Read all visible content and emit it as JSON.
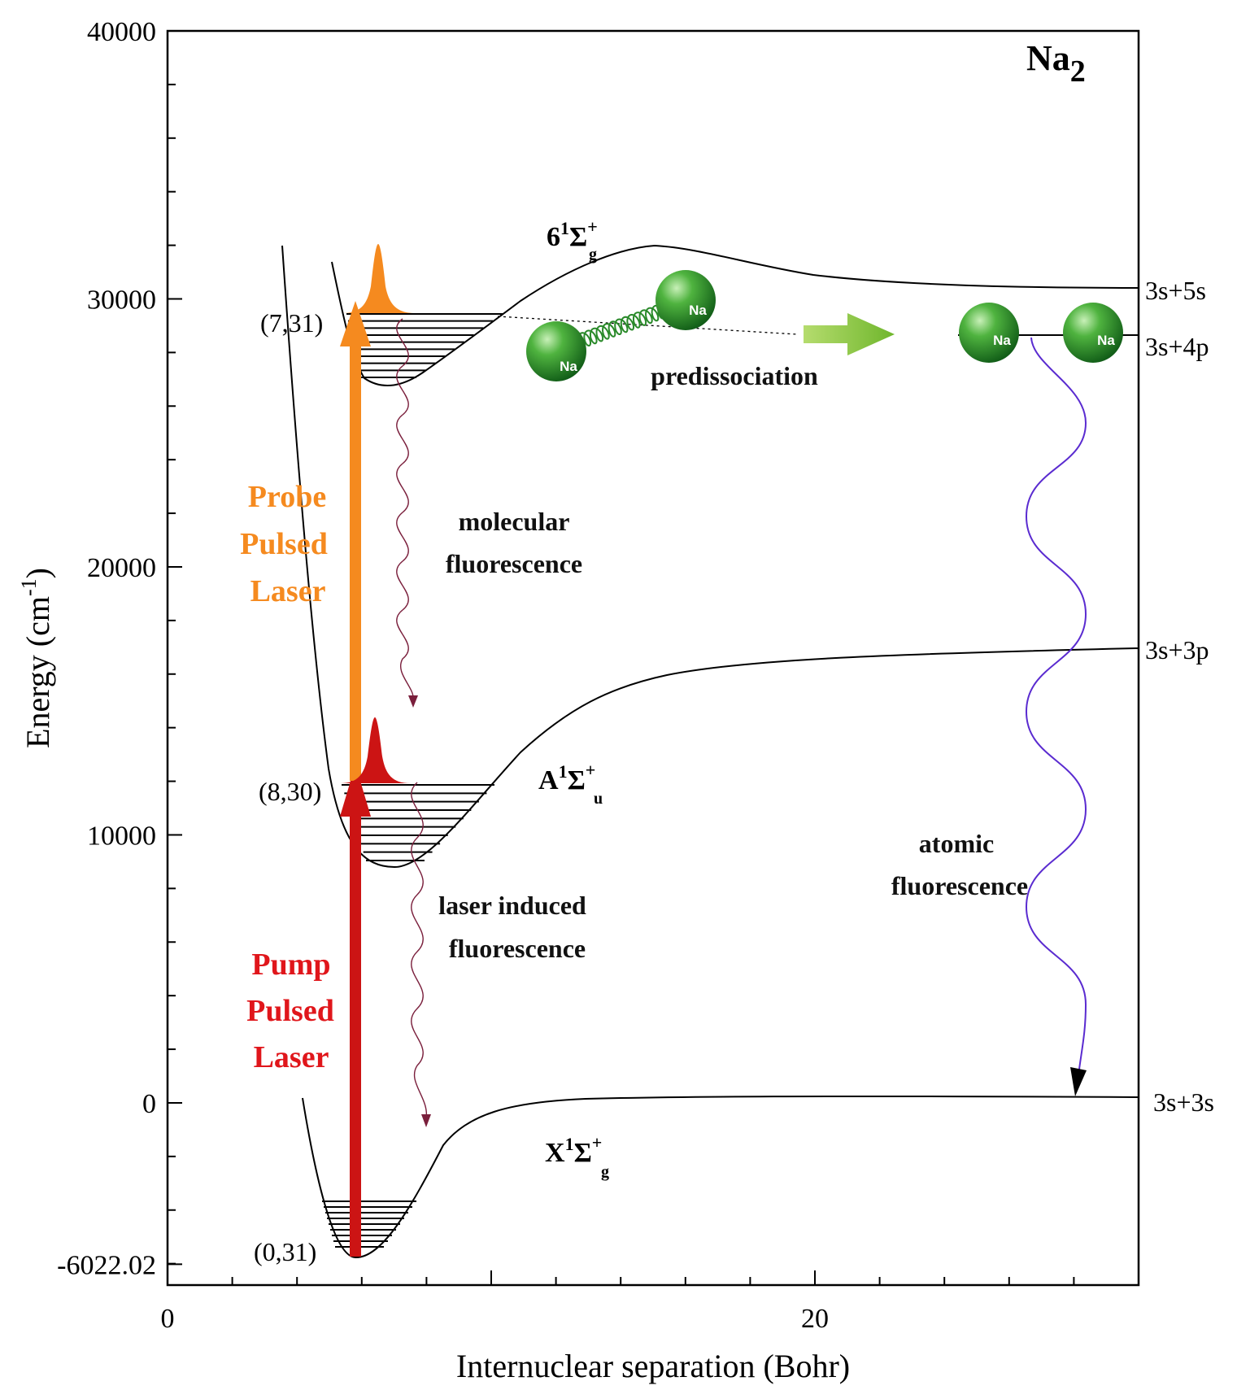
{
  "diagram": {
    "title_species": "Na",
    "title_subscript": "2",
    "axes": {
      "x_label": "Internuclear separation (Bohr)",
      "y_label_main": "Energy (cm",
      "y_label_sup": "-1",
      "y_label_close": ")",
      "x_ticks": [
        {
          "value": 0,
          "label": "0"
        },
        {
          "value": 20,
          "label": "20"
        }
      ],
      "y_ticks": [
        {
          "value": 40000,
          "label": "40000"
        },
        {
          "value": 30000,
          "label": "30000"
        },
        {
          "value": 20000,
          "label": "20000"
        },
        {
          "value": 10000,
          "label": "10000"
        },
        {
          "value": 0,
          "label": "0"
        },
        {
          "value": -6022.02,
          "label": "-6022.02"
        }
      ],
      "x_range": [
        0,
        30
      ],
      "y_range": [
        -6800,
        40000
      ]
    },
    "states": {
      "six": {
        "main": "6",
        "sup1": "1",
        "sigma": "Σ",
        "sup2": "+",
        "sub": "g"
      },
      "a": {
        "main": "A",
        "sup1": "1",
        "sigma": "Σ",
        "sup2": "+",
        "sub": "u"
      },
      "x": {
        "main": "X",
        "sup1": "1",
        "sigma": "Σ",
        "sup2": "+",
        "sub": "g"
      }
    },
    "asymptotes": {
      "s5s": "3s+5s",
      "s4p": "3s+4p",
      "s3p": "3s+3p",
      "s3s": "3s+3s"
    },
    "vibrational_labels": {
      "upper": "(7,31)",
      "middle": "(8,30)",
      "lower": "(0,31)"
    },
    "annotations": {
      "probe": [
        "Probe",
        "Pulsed",
        "Laser"
      ],
      "pump": [
        "Pump",
        "Pulsed",
        "Laser"
      ],
      "molecular_fluorescence": [
        "molecular",
        "fluorescence"
      ],
      "laser_induced_fluorescence": [
        "laser induced",
        "fluorescence"
      ],
      "atomic_fluorescence": [
        "atomic",
        "fluorescence"
      ],
      "predissociation": "predissociation",
      "atom_label": "Na"
    },
    "colors": {
      "probe": "#f58a1f",
      "pump": "#cc1414",
      "atomic_wave": "#5a2bd0",
      "molecular_wave": "#7a1f3c",
      "atom_green": "#2f9a2f",
      "arrow_green": "#8cc63f"
    }
  }
}
